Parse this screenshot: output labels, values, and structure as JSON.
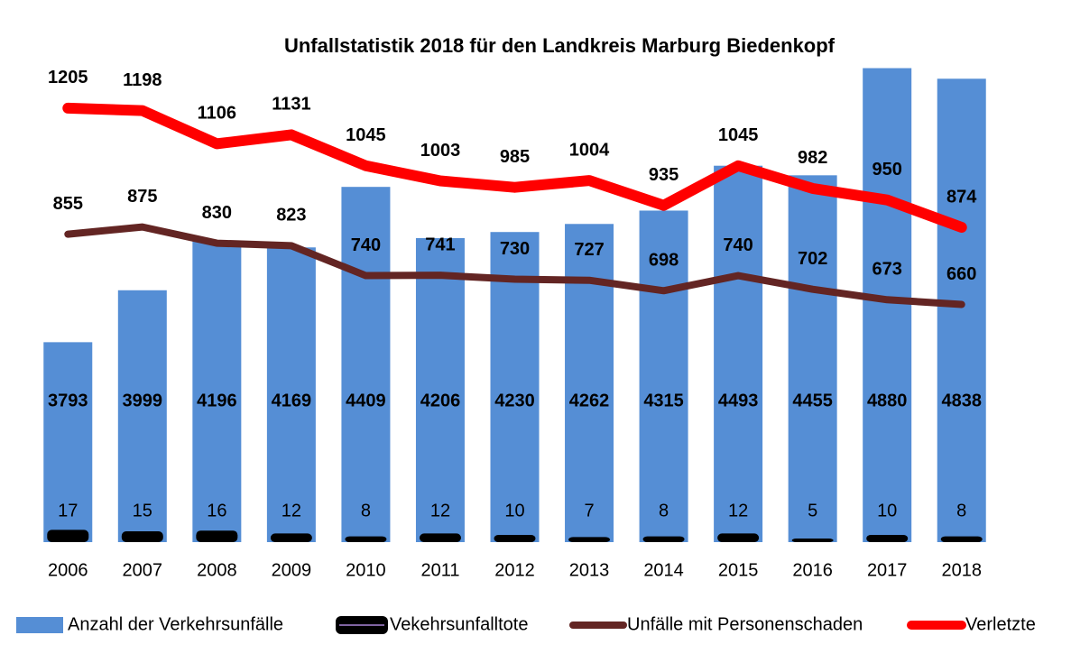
{
  "chart_data": {
    "type": "bar-line",
    "title": "Unfallstatistik  2018 für den Landkreis Marburg Biedenkopf",
    "categories": [
      "2006",
      "2007",
      "2008",
      "2009",
      "2010",
      "2011",
      "2012",
      "2013",
      "2014",
      "2015",
      "2016",
      "2017",
      "2018"
    ],
    "ylim": [
      3000,
      5000
    ],
    "y2lim": [
      0,
      1400
    ],
    "y3lim": [
      0,
      700
    ],
    "legend": "bottom",
    "series": [
      {
        "name": "Anzahl der Verkehrsunfälle",
        "type": "bar",
        "color": "#558ed5",
        "values": [
          3793,
          3999,
          4196,
          4169,
          4409,
          4206,
          4230,
          4262,
          4315,
          4493,
          4455,
          4880,
          4838
        ]
      },
      {
        "name": "Vekehrsunfalltote",
        "type": "bar",
        "axis": "y3",
        "color": "#000000",
        "values": [
          17,
          15,
          16,
          12,
          8,
          12,
          10,
          7,
          8,
          12,
          5,
          10,
          8
        ]
      },
      {
        "name": "Unfälle mit Personenschaden",
        "type": "line",
        "axis": "y2",
        "color": "#632523",
        "values": [
          855,
          875,
          830,
          823,
          740,
          741,
          730,
          727,
          698,
          740,
          702,
          673,
          660
        ]
      },
      {
        "name": "Verletzte",
        "type": "line",
        "axis": "y2",
        "color": "#ff0000",
        "values": [
          1205,
          1198,
          1106,
          1131,
          1045,
          1003,
          985,
          1004,
          935,
          1045,
          982,
          950,
          874
        ]
      }
    ]
  }
}
